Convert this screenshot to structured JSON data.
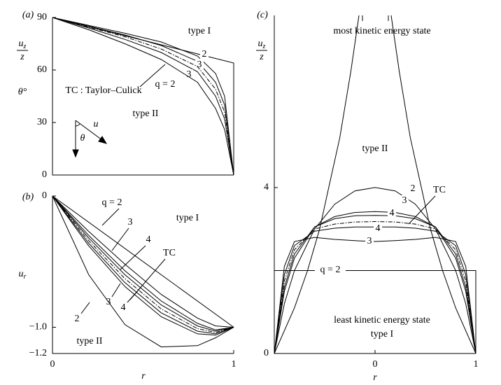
{
  "chart_data": [
    {
      "type": "line",
      "panel": "(a)",
      "ylabel": "θ°",
      "ylabel_fraction": {
        "numerator": "u",
        "subscript": "z",
        "denominator": "z"
      },
      "xlim": [
        0,
        1
      ],
      "ylim": [
        0,
        90
      ],
      "yticks": [
        0,
        30,
        60,
        90
      ],
      "color": "#000000",
      "annotations": [
        "type I",
        "type II",
        "TC : Taylor–Culick",
        "u",
        "θ"
      ],
      "series": [
        {
          "x": [
            0,
            1,
            1
          ],
          "values": [
            90,
            64,
            0
          ]
        },
        {
          "name": "2",
          "x": [
            0,
            0.2,
            0.4,
            0.6,
            0.8,
            0.9,
            0.95,
            1
          ],
          "values": [
            90,
            85.5,
            81,
            76,
            68,
            58,
            45,
            0
          ]
        },
        {
          "name": "3",
          "x": [
            0,
            0.2,
            0.4,
            0.6,
            0.8,
            0.9,
            0.95,
            1
          ],
          "values": [
            90,
            85,
            80,
            74,
            65,
            53,
            40,
            0
          ]
        },
        {
          "style": "dashdot",
          "x": [
            0,
            0.2,
            0.4,
            0.6,
            0.8,
            0.9,
            0.95,
            1
          ],
          "values": [
            90,
            84.5,
            79,
            72,
            62,
            49,
            36,
            0
          ]
        },
        {
          "name": "3",
          "x": [
            0,
            0.2,
            0.4,
            0.6,
            0.8,
            0.9,
            0.95,
            1
          ],
          "values": [
            90,
            84,
            77.5,
            70,
            59,
            45,
            32,
            0
          ]
        },
        {
          "name": "q = 2",
          "x": [
            0,
            0.2,
            0.4,
            0.6,
            0.8,
            0.9,
            0.95,
            1
          ],
          "values": [
            90,
            83,
            75,
            66,
            53,
            38,
            26,
            0
          ]
        }
      ]
    },
    {
      "type": "line",
      "panel": "(b)",
      "ylabel": {
        "base": "u",
        "subscript": "r"
      },
      "xlabel": "r",
      "xlim": [
        0,
        1
      ],
      "ylim": [
        -1.2,
        0
      ],
      "xticks": [
        0,
        1
      ],
      "yticks": [
        0,
        {
          "value": -1,
          "label": "−1.0"
        },
        {
          "value": -1.2,
          "label": "−1.2"
        }
      ],
      "color": "#000000",
      "annotations": [
        "type I",
        "type II"
      ],
      "series": [
        {
          "x": [
            0,
            1
          ],
          "values": [
            0,
            -1
          ]
        },
        {
          "name": "q = 2",
          "x": [
            0,
            0.2,
            0.4,
            0.6,
            0.8,
            0.9,
            1
          ],
          "values": [
            0,
            -0.27,
            -0.52,
            -0.75,
            -0.93,
            -0.99,
            -1
          ]
        },
        {
          "name": "3",
          "x": [
            0,
            0.2,
            0.4,
            0.6,
            0.8,
            0.9,
            1
          ],
          "values": [
            0,
            -0.3,
            -0.57,
            -0.8,
            -0.97,
            -1.02,
            -1
          ]
        },
        {
          "name": "4",
          "x": [
            0,
            0.2,
            0.4,
            0.6,
            0.8,
            0.9,
            1
          ],
          "values": [
            0,
            -0.32,
            -0.6,
            -0.83,
            -0.99,
            -1.03,
            -1
          ]
        },
        {
          "name": "TC",
          "style": "dashdot",
          "x": [
            0,
            0.2,
            0.4,
            0.6,
            0.8,
            0.9,
            1
          ],
          "values": [
            0,
            -0.34,
            -0.63,
            -0.86,
            -1.01,
            -1.04,
            -1
          ]
        },
        {
          "name": "4",
          "x": [
            0,
            0.2,
            0.4,
            0.6,
            0.8,
            0.9,
            1
          ],
          "values": [
            0,
            -0.36,
            -0.66,
            -0.89,
            -1.03,
            -1.05,
            -1
          ]
        },
        {
          "name": "3",
          "x": [
            0,
            0.2,
            0.4,
            0.6,
            0.8,
            0.9,
            1
          ],
          "values": [
            0,
            -0.38,
            -0.69,
            -0.92,
            -1.05,
            -1.06,
            -1
          ]
        },
        {
          "name": "2",
          "x": [
            0,
            0.2,
            0.4,
            0.6,
            0.8,
            0.9,
            1
          ],
          "values": [
            0,
            -0.6,
            -0.98,
            -1.15,
            -1.14,
            -1.08,
            -1
          ]
        }
      ]
    },
    {
      "type": "line",
      "panel": "(c)",
      "xlabel": "r",
      "ylabel_fraction": {
        "numerator": "u",
        "subscript": "z",
        "denominator": "z"
      },
      "xlim": [
        -1,
        1
      ],
      "ylim": [
        0,
        8.15
      ],
      "xticks": [
        0,
        1
      ],
      "yticks": [
        0,
        4
      ],
      "color": "#000000",
      "annotations": [
        "most kinetic energy state",
        "type II",
        "least kinetic energy state",
        "type I"
      ],
      "series": [
        {
          "name": "q = 2",
          "x": [
            -1,
            -1,
            1,
            1
          ],
          "values": [
            0,
            2,
            2,
            0
          ]
        },
        {
          "x": [
            -1,
            -0.8,
            -0.67,
            -0.55,
            -0.46,
            -0.35,
            -0.24,
            -0.16,
            0,
            0.16,
            0.24,
            0.35,
            0.46,
            0.55,
            0.67,
            0.8,
            1
          ],
          "values": [
            0,
            1.1,
            2,
            3,
            4,
            5.2,
            6.8,
            8.15,
            null,
            8.15,
            6.8,
            5.2,
            4,
            3,
            2,
            1.1,
            0
          ]
        },
        {
          "name": "2",
          "x": [
            -1,
            -0.9,
            -0.8,
            -0.6,
            -0.4,
            -0.2,
            0,
            0.2,
            0.4,
            0.6,
            0.8,
            0.9,
            1
          ],
          "values": [
            0,
            1.2,
            2.0,
            3.0,
            3.6,
            3.92,
            4.0,
            3.92,
            3.6,
            3.0,
            2.0,
            1.2,
            0
          ]
        },
        {
          "name": "3",
          "x": [
            -1,
            -0.9,
            -0.8,
            -0.6,
            -0.4,
            -0.2,
            0,
            0.2,
            0.4,
            0.6,
            0.8,
            0.9,
            1
          ],
          "values": [
            0,
            1.5,
            2.3,
            3.05,
            3.3,
            3.4,
            3.42,
            3.4,
            3.3,
            3.05,
            2.3,
            1.5,
            0
          ]
        },
        {
          "name": "4",
          "x": [
            -1,
            -0.9,
            -0.8,
            -0.6,
            -0.4,
            -0.2,
            0,
            0.2,
            0.4,
            0.6,
            0.8,
            0.9,
            1
          ],
          "values": [
            0,
            1.6,
            2.4,
            3.05,
            3.25,
            3.32,
            3.33,
            3.32,
            3.25,
            3.05,
            2.4,
            1.6,
            0
          ]
        },
        {
          "name": "TC",
          "style": "dashdot",
          "x": [
            -1,
            -0.9,
            -0.8,
            -0.6,
            -0.4,
            -0.2,
            0,
            0.2,
            0.4,
            0.6,
            0.8,
            0.9,
            1
          ],
          "values": [
            0,
            1.75,
            2.5,
            3.0,
            3.12,
            3.17,
            3.18,
            3.17,
            3.12,
            3.0,
            2.5,
            1.75,
            0
          ]
        },
        {
          "name": "4",
          "x": [
            -1,
            -0.9,
            -0.8,
            -0.6,
            -0.4,
            -0.2,
            0,
            0.2,
            0.4,
            0.6,
            0.8,
            0.9,
            1
          ],
          "values": [
            0,
            1.9,
            2.6,
            2.95,
            3.02,
            3.05,
            3.05,
            3.05,
            3.02,
            2.95,
            2.6,
            1.9,
            0
          ]
        },
        {
          "name": "3",
          "x": [
            -1,
            -0.9,
            -0.8,
            -0.6,
            -0.4,
            -0.2,
            0,
            0.2,
            0.4,
            0.6,
            0.8,
            0.9,
            1
          ],
          "values": [
            0,
            2.1,
            2.7,
            2.8,
            2.75,
            2.72,
            2.7,
            2.72,
            2.75,
            2.8,
            2.7,
            2.1,
            0
          ]
        }
      ]
    }
  ]
}
